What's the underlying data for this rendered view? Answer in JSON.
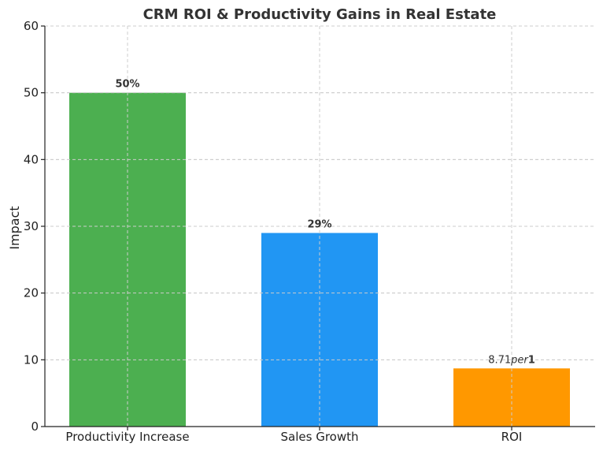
{
  "chart_data": {
    "type": "bar",
    "title": "CRM ROI & Productivity Gains in Real Estate",
    "xlabel": "",
    "ylabel": "Impact",
    "categories": [
      "Productivity Increase",
      "Sales Growth",
      "ROI"
    ],
    "values": [
      50,
      29,
      8.71
    ],
    "data_labels": [
      {
        "main": "50%",
        "bold": true
      },
      {
        "main": "29%",
        "bold": true
      },
      {
        "main": "8.71",
        "italic": "per",
        "tail": "1"
      }
    ],
    "colors": [
      "#4caf50",
      "#2196f3",
      "#ff9800"
    ],
    "ylim": [
      0,
      60
    ],
    "yticks": [
      0,
      10,
      20,
      30,
      40,
      50,
      60
    ],
    "grid": true,
    "legend": "none"
  }
}
